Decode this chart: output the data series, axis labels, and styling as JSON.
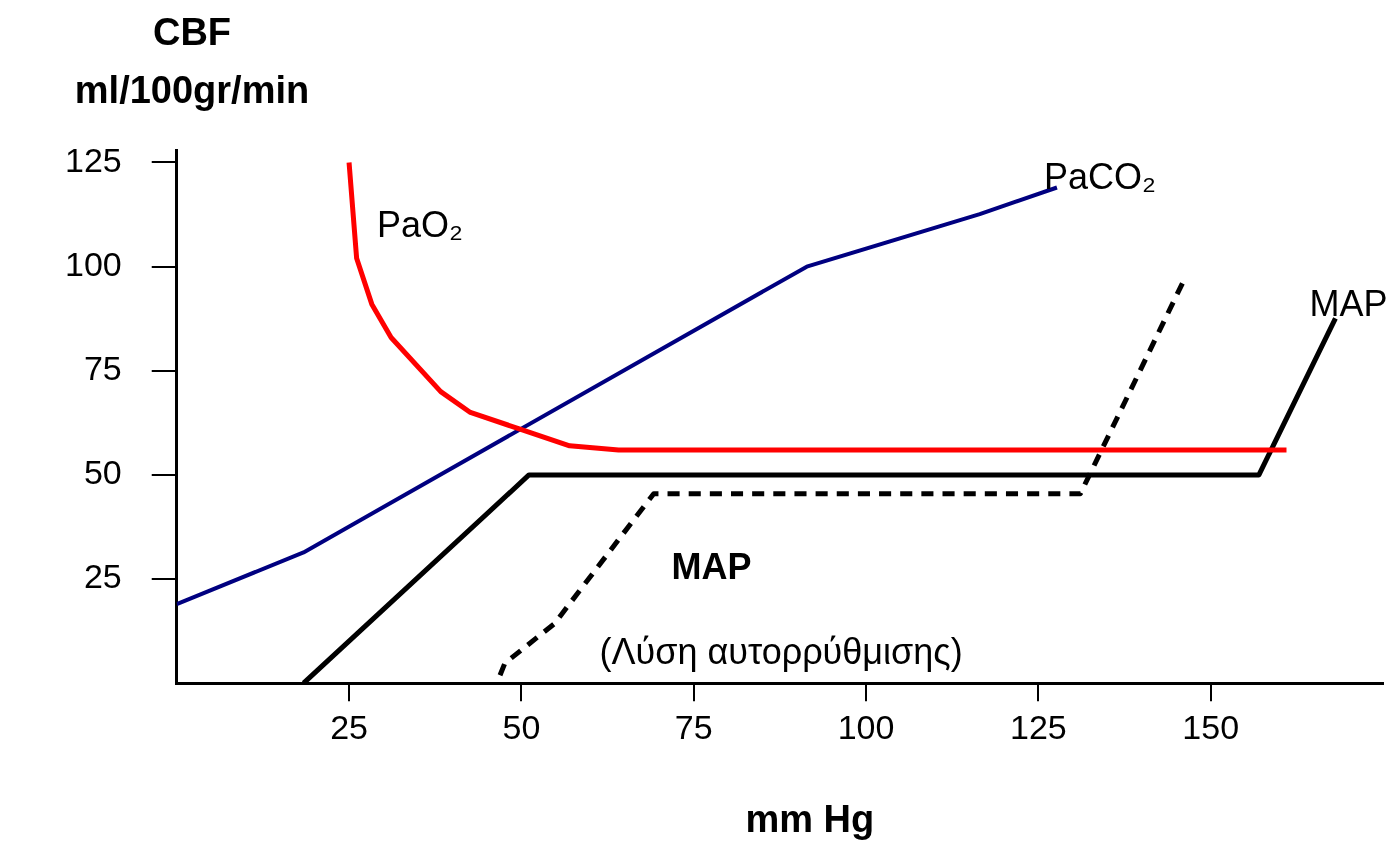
{
  "chart_data": {
    "type": "line",
    "ylabel": "CBF\nml/100gr/min",
    "xlabel": "mm Hg",
    "xlim": [
      0,
      175
    ],
    "xticks": [
      25,
      50,
      75,
      100,
      125,
      150
    ],
    "ylim": [
      0,
      128
    ],
    "yticks": [
      25,
      50,
      75,
      100,
      125
    ],
    "grid": false,
    "legend": false,
    "marker": "none",
    "series": [
      {
        "name": "PaO₂",
        "color": "#ff0000",
        "x": [
          25,
          26.1,
          28.3,
          31.1,
          38.3,
          42.6,
          49.8,
          57,
          64.1,
          161
        ],
        "values": [
          125,
          102,
          91,
          83,
          70,
          65,
          61,
          57,
          56,
          56
        ]
      },
      {
        "name": "PaCO₂",
        "color": "#000080",
        "x": [
          0,
          18.4,
          91.4,
          116.5,
          127.7
        ],
        "values": [
          19,
          31.4,
          100,
          112.6,
          119
        ]
      },
      {
        "name": "MAP",
        "color": "#000000",
        "x": [
          18.4,
          51.1,
          157,
          168.1
        ],
        "values": [
          0,
          50,
          50,
          87.6
        ]
      },
      {
        "name": "MAP (Λύση αυτορρύθμισης)",
        "color": "#000000",
        "line_style": "dashed",
        "x": [
          46.9,
          47.6,
          54.8,
          69.2,
          131.1,
          145.9
        ],
        "values": [
          1.9,
          4.8,
          14.3,
          45.5,
          45.5,
          96
        ]
      }
    ]
  }
}
